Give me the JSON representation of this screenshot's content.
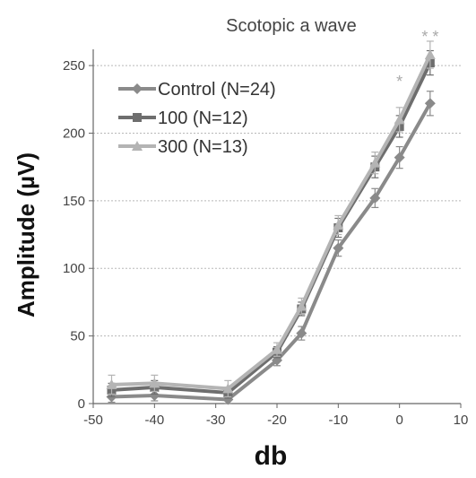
{
  "chart_data": {
    "type": "line",
    "title": "Scotopic a wave",
    "xlabel": "db",
    "ylabel": "Amplitude (µV)",
    "xlim": [
      -50,
      10
    ],
    "ylim": [
      0,
      262
    ],
    "xticks": [
      -50,
      -40,
      -30,
      -20,
      -10,
      0,
      10
    ],
    "xtick_labels": [
      "-50",
      "-40",
      "-30",
      "-20",
      "-10",
      "0",
      "10"
    ],
    "yticks": [
      0,
      50,
      100,
      150,
      200,
      250
    ],
    "ytick_labels": [
      "0",
      "50",
      "100",
      "150",
      "200",
      "250"
    ],
    "grid": "horizontal",
    "legend": "top-left",
    "x": [
      -47,
      -40,
      -28,
      -20,
      -16,
      -10,
      -4,
      0,
      5
    ],
    "series": [
      {
        "name": "Control (N=24)",
        "color": "#8a8a8a",
        "values": [
          5,
          6,
          3,
          32,
          52,
          115,
          152,
          182,
          222
        ],
        "errors": [
          4,
          4,
          3,
          4,
          5,
          6,
          7,
          8,
          9
        ]
      },
      {
        "name": "100 (N=12)",
        "color": "#6e6e6e",
        "values": [
          10,
          12,
          8,
          38,
          70,
          130,
          175,
          205,
          252
        ],
        "errors": [
          5,
          5,
          4,
          4,
          5,
          7,
          8,
          8,
          9
        ]
      },
      {
        "name": "300 (N=13)",
        "color": "#b4b4b4",
        "values": [
          14,
          15,
          11,
          40,
          72,
          132,
          178,
          210,
          258
        ],
        "errors": [
          7,
          6,
          6,
          5,
          6,
          7,
          8,
          9,
          10
        ]
      }
    ],
    "annotations": [
      {
        "text": "* *",
        "x": 5,
        "y": 258
      },
      {
        "text": "*",
        "x": 0,
        "y": 225
      }
    ]
  }
}
